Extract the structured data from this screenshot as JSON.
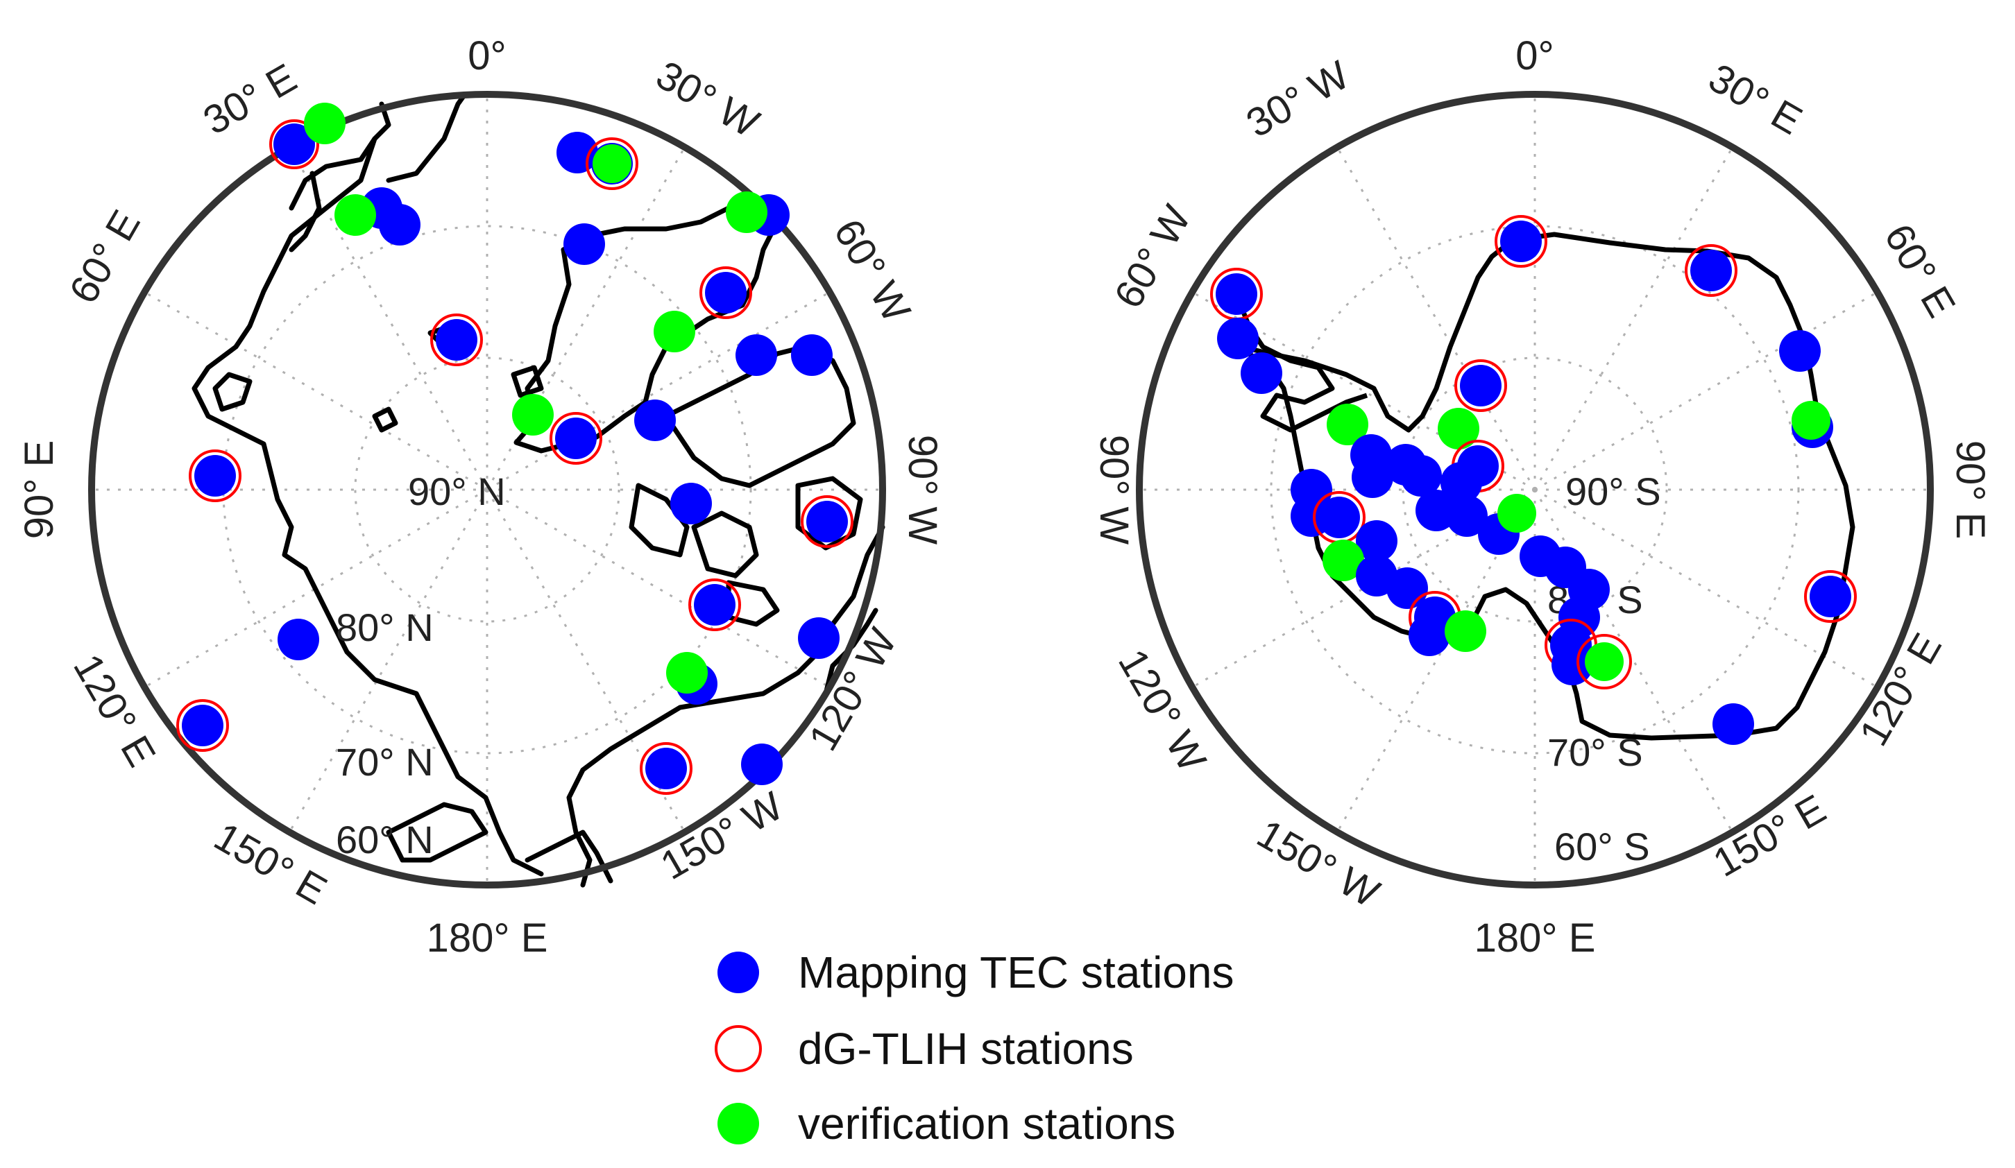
{
  "colors": {
    "mapping": "#0000ff",
    "dgtlih": "#ff0000",
    "verification": "#00ff00",
    "frame": "#333333",
    "coast": "#000000",
    "grid": "#b0b0b0"
  },
  "north": {
    "center_label": "90° N",
    "ring_labels": [
      "80° N",
      "70° N",
      "60° N"
    ],
    "meridian_labels": [
      "0°",
      "30° W",
      "60° W",
      "90° W",
      "120° W",
      "150° W",
      "180° E",
      "150° E",
      "120° E",
      "90° E",
      "60° E",
      "30° E"
    ]
  },
  "south": {
    "center_label": "90° S",
    "ring_labels": [
      "80° S",
      "70° S",
      "60° S"
    ],
    "meridian_labels": [
      "0°",
      "30° E",
      "60° E",
      "90° E",
      "120° E",
      "150° E",
      "180° E",
      "150° W",
      "120° W",
      "90° W",
      "60° W",
      "30° W"
    ]
  },
  "legend": {
    "mapping_label": "Mapping TEC stations",
    "dgtlih_label": "dG-TLIH stations",
    "verification_label": "verification stations"
  }
}
